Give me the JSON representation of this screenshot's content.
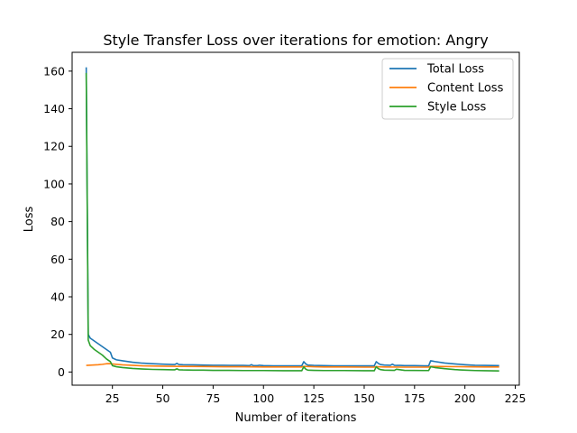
{
  "chart_data": {
    "type": "line",
    "title": "Style Transfer Loss over iterations for emotion: Angry",
    "xlabel": "Number of iterations",
    "ylabel": "Loss",
    "xlim": [
      5,
      227
    ],
    "ylim": [
      -7,
      170
    ],
    "xticks": [
      25,
      50,
      75,
      100,
      125,
      150,
      175,
      200,
      225
    ],
    "yticks": [
      0,
      20,
      40,
      60,
      80,
      100,
      120,
      140,
      160
    ],
    "grid": false,
    "legend_position": "top-right",
    "series": [
      {
        "name": "Total Loss",
        "color": "#1f77b4",
        "x": [
          12,
          13,
          14,
          16,
          18,
          20,
          22,
          24,
          25,
          27,
          30,
          35,
          40,
          45,
          50,
          55,
          56,
          57,
          58,
          60,
          65,
          70,
          75,
          80,
          85,
          90,
          93,
          94,
          95,
          97,
          98,
          100,
          105,
          110,
          115,
          119,
          120,
          121,
          122,
          125,
          130,
          135,
          140,
          145,
          150,
          155,
          156,
          157,
          158,
          160,
          163,
          164,
          165,
          166,
          168,
          170,
          175,
          180,
          182,
          183,
          184,
          185,
          190,
          195,
          200,
          205,
          210,
          217
        ],
        "y": [
          162,
          20,
          18,
          16.5,
          15,
          13.5,
          12,
          10.5,
          7.5,
          6.5,
          6,
          5.2,
          4.7,
          4.4,
          4.2,
          4.0,
          4.0,
          4.6,
          4.0,
          3.9,
          3.8,
          3.7,
          3.6,
          3.6,
          3.5,
          3.5,
          3.4,
          3.9,
          3.4,
          3.4,
          3.6,
          3.4,
          3.3,
          3.3,
          3.3,
          3.3,
          5.5,
          4.3,
          3.7,
          3.5,
          3.4,
          3.3,
          3.3,
          3.3,
          3.3,
          3.3,
          5.5,
          4.6,
          4.0,
          3.7,
          3.6,
          4.2,
          3.6,
          3.5,
          3.5,
          3.4,
          3.4,
          3.3,
          3.3,
          6.0,
          5.8,
          5.6,
          4.8,
          4.3,
          3.9,
          3.6,
          3.5,
          3.4
        ]
      },
      {
        "name": "Content Loss",
        "color": "#ff7f0e",
        "x": [
          12,
          15,
          18,
          20,
          22,
          24,
          25,
          30,
          40,
          50,
          60,
          70,
          80,
          90,
          100,
          110,
          119,
          120,
          121,
          125,
          130,
          140,
          150,
          155,
          156,
          157,
          160,
          170,
          180,
          182,
          183,
          184,
          190,
          200,
          210,
          217
        ],
        "y": [
          3.5,
          3.7,
          3.9,
          4.1,
          4.4,
          4.5,
          4.3,
          3.8,
          3.3,
          3.1,
          3.0,
          2.9,
          2.8,
          2.8,
          2.7,
          2.7,
          2.7,
          3.0,
          3.0,
          2.8,
          2.7,
          2.7,
          2.6,
          2.6,
          2.9,
          2.8,
          2.7,
          2.6,
          2.6,
          2.6,
          3.0,
          3.0,
          2.9,
          2.8,
          2.7,
          2.7
        ]
      },
      {
        "name": "Style Loss",
        "color": "#2ca02c",
        "x": [
          12,
          13,
          14,
          16,
          18,
          20,
          22,
          24,
          25,
          27,
          30,
          35,
          40,
          45,
          50,
          55,
          56,
          57,
          58,
          60,
          65,
          70,
          75,
          80,
          90,
          95,
          100,
          110,
          119,
          120,
          121,
          122,
          125,
          130,
          140,
          150,
          155,
          156,
          157,
          158,
          160,
          165,
          166,
          170,
          180,
          182,
          183,
          184,
          185,
          190,
          195,
          200,
          205,
          210,
          217
        ],
        "y": [
          159,
          17,
          14,
          12,
          10.5,
          9,
          7,
          5.5,
          3.4,
          2.8,
          2.4,
          1.9,
          1.6,
          1.4,
          1.3,
          1.2,
          1.2,
          1.7,
          1.2,
          1.1,
          1.0,
          1.0,
          0.9,
          0.9,
          0.8,
          0.8,
          0.8,
          0.7,
          0.7,
          2.8,
          1.5,
          1.0,
          0.9,
          0.8,
          0.8,
          0.7,
          0.7,
          2.8,
          1.8,
          1.3,
          1.0,
          0.9,
          1.5,
          0.9,
          0.8,
          0.8,
          2.8,
          2.6,
          2.4,
          1.8,
          1.3,
          1.0,
          0.8,
          0.7,
          0.6
        ]
      }
    ]
  }
}
